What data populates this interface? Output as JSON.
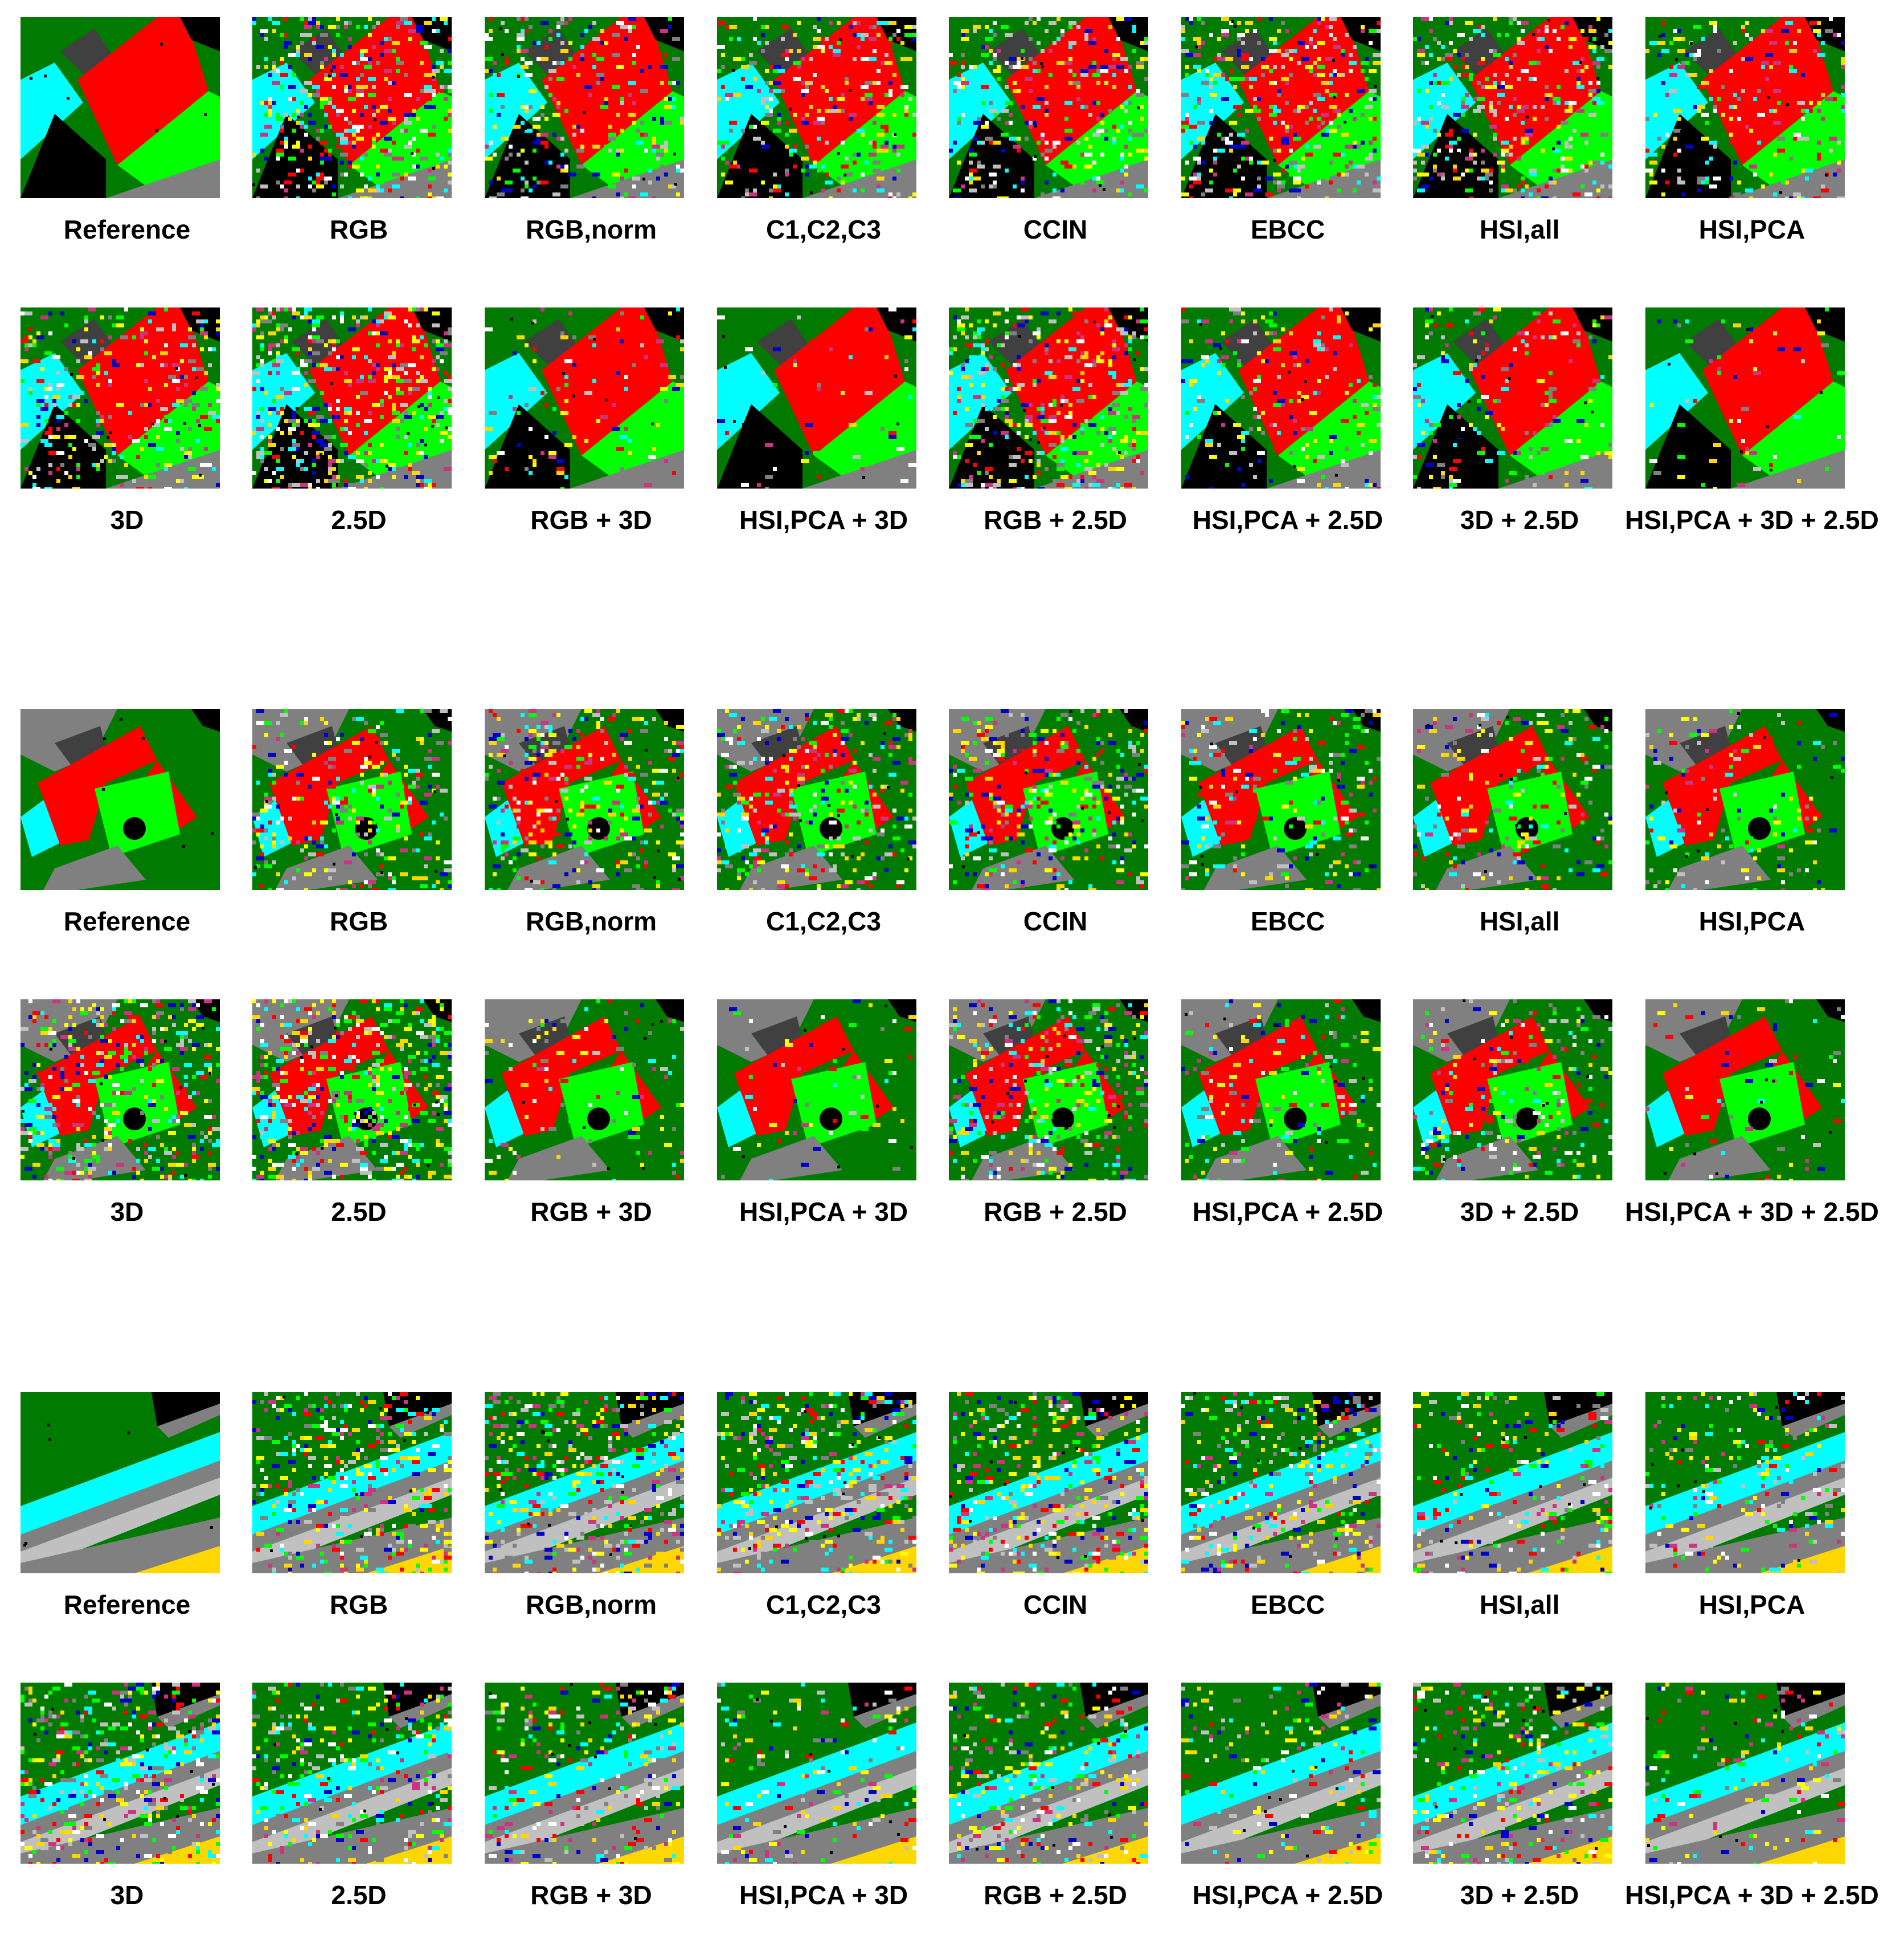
{
  "figure": {
    "blocks": [
      {
        "scene": "scene-1",
        "rows": [
          {
            "panels": [
              {
                "label": "Reference",
                "noise": 0.0
              },
              {
                "label": "RGB",
                "noise": 0.42
              },
              {
                "label": "RGB,norm",
                "noise": 0.28
              },
              {
                "label": "C1,C2,C3",
                "noise": 0.3
              },
              {
                "label": "CCIN",
                "noise": 0.3
              },
              {
                "label": "EBCC",
                "noise": 0.36
              },
              {
                "label": "HSI,all",
                "noise": 0.34
              },
              {
                "label": "HSI,PCA",
                "noise": 0.22
              }
            ]
          },
          {
            "panels": [
              {
                "label": "3D",
                "noise": 0.3
              },
              {
                "label": "2.5D",
                "noise": 0.48
              },
              {
                "label": "RGB + 3D",
                "noise": 0.1
              },
              {
                "label": "HSI,PCA + 3D",
                "noise": 0.05
              },
              {
                "label": "RGB + 2.5D",
                "noise": 0.4
              },
              {
                "label": "HSI,PCA + 2.5D",
                "noise": 0.2
              },
              {
                "label": "3D + 2.5D",
                "noise": 0.18
              },
              {
                "label": "HSI,PCA + 3D + 2.5D",
                "noise": 0.05
              }
            ]
          }
        ]
      },
      {
        "scene": "scene-2",
        "rows": [
          {
            "panels": [
              {
                "label": "Reference",
                "noise": 0.0
              },
              {
                "label": "RGB",
                "noise": 0.3
              },
              {
                "label": "RGB,norm",
                "noise": 0.32
              },
              {
                "label": "C1,C2,C3",
                "noise": 0.32
              },
              {
                "label": "CCIN",
                "noise": 0.32
              },
              {
                "label": "EBCC",
                "noise": 0.22
              },
              {
                "label": "HSI,all",
                "noise": 0.2
              },
              {
                "label": "HSI,PCA",
                "noise": 0.14
              }
            ]
          },
          {
            "panels": [
              {
                "label": "3D",
                "noise": 0.42
              },
              {
                "label": "2.5D",
                "noise": 0.5
              },
              {
                "label": "RGB + 3D",
                "noise": 0.1
              },
              {
                "label": "HSI,PCA + 3D",
                "noise": 0.06
              },
              {
                "label": "RGB + 2.5D",
                "noise": 0.36
              },
              {
                "label": "HSI,PCA + 2.5D",
                "noise": 0.16
              },
              {
                "label": "3D + 2.5D",
                "noise": 0.22
              },
              {
                "label": "HSI,PCA + 3D + 2.5D",
                "noise": 0.06
              }
            ]
          }
        ]
      },
      {
        "scene": "scene-3",
        "rows": [
          {
            "panels": [
              {
                "label": "Reference",
                "noise": 0.0
              },
              {
                "label": "RGB",
                "noise": 0.4
              },
              {
                "label": "RGB,norm",
                "noise": 0.42
              },
              {
                "label": "C1,C2,C3",
                "noise": 0.4
              },
              {
                "label": "CCIN",
                "noise": 0.4
              },
              {
                "label": "EBCC",
                "noise": 0.34
              },
              {
                "label": "HSI,all",
                "noise": 0.24
              },
              {
                "label": "HSI,PCA",
                "noise": 0.22
              }
            ]
          },
          {
            "panels": [
              {
                "label": "3D",
                "noise": 0.42
              },
              {
                "label": "2.5D",
                "noise": 0.34
              },
              {
                "label": "RGB + 3D",
                "noise": 0.26
              },
              {
                "label": "HSI,PCA + 3D",
                "noise": 0.16
              },
              {
                "label": "RGB + 2.5D",
                "noise": 0.3
              },
              {
                "label": "HSI,PCA + 2.5D",
                "noise": 0.16
              },
              {
                "label": "3D + 2.5D",
                "noise": 0.3
              },
              {
                "label": "HSI,PCA + 3D + 2.5D",
                "noise": 0.14
              }
            ]
          }
        ]
      }
    ],
    "class_colors": {
      "roof": "#ff0000",
      "grass": "#00ff00",
      "tree": "#007a00",
      "water": "#00ffff",
      "shadow": "#000000",
      "road": "#808080",
      "dark_roof": "#404040",
      "light_gray": "#c0c0c0",
      "yellow": "#ffd700",
      "bright_yellow": "#ffff00",
      "blue": "#0000cc",
      "magenta": "#cc3380",
      "white": "#ffffff"
    }
  }
}
